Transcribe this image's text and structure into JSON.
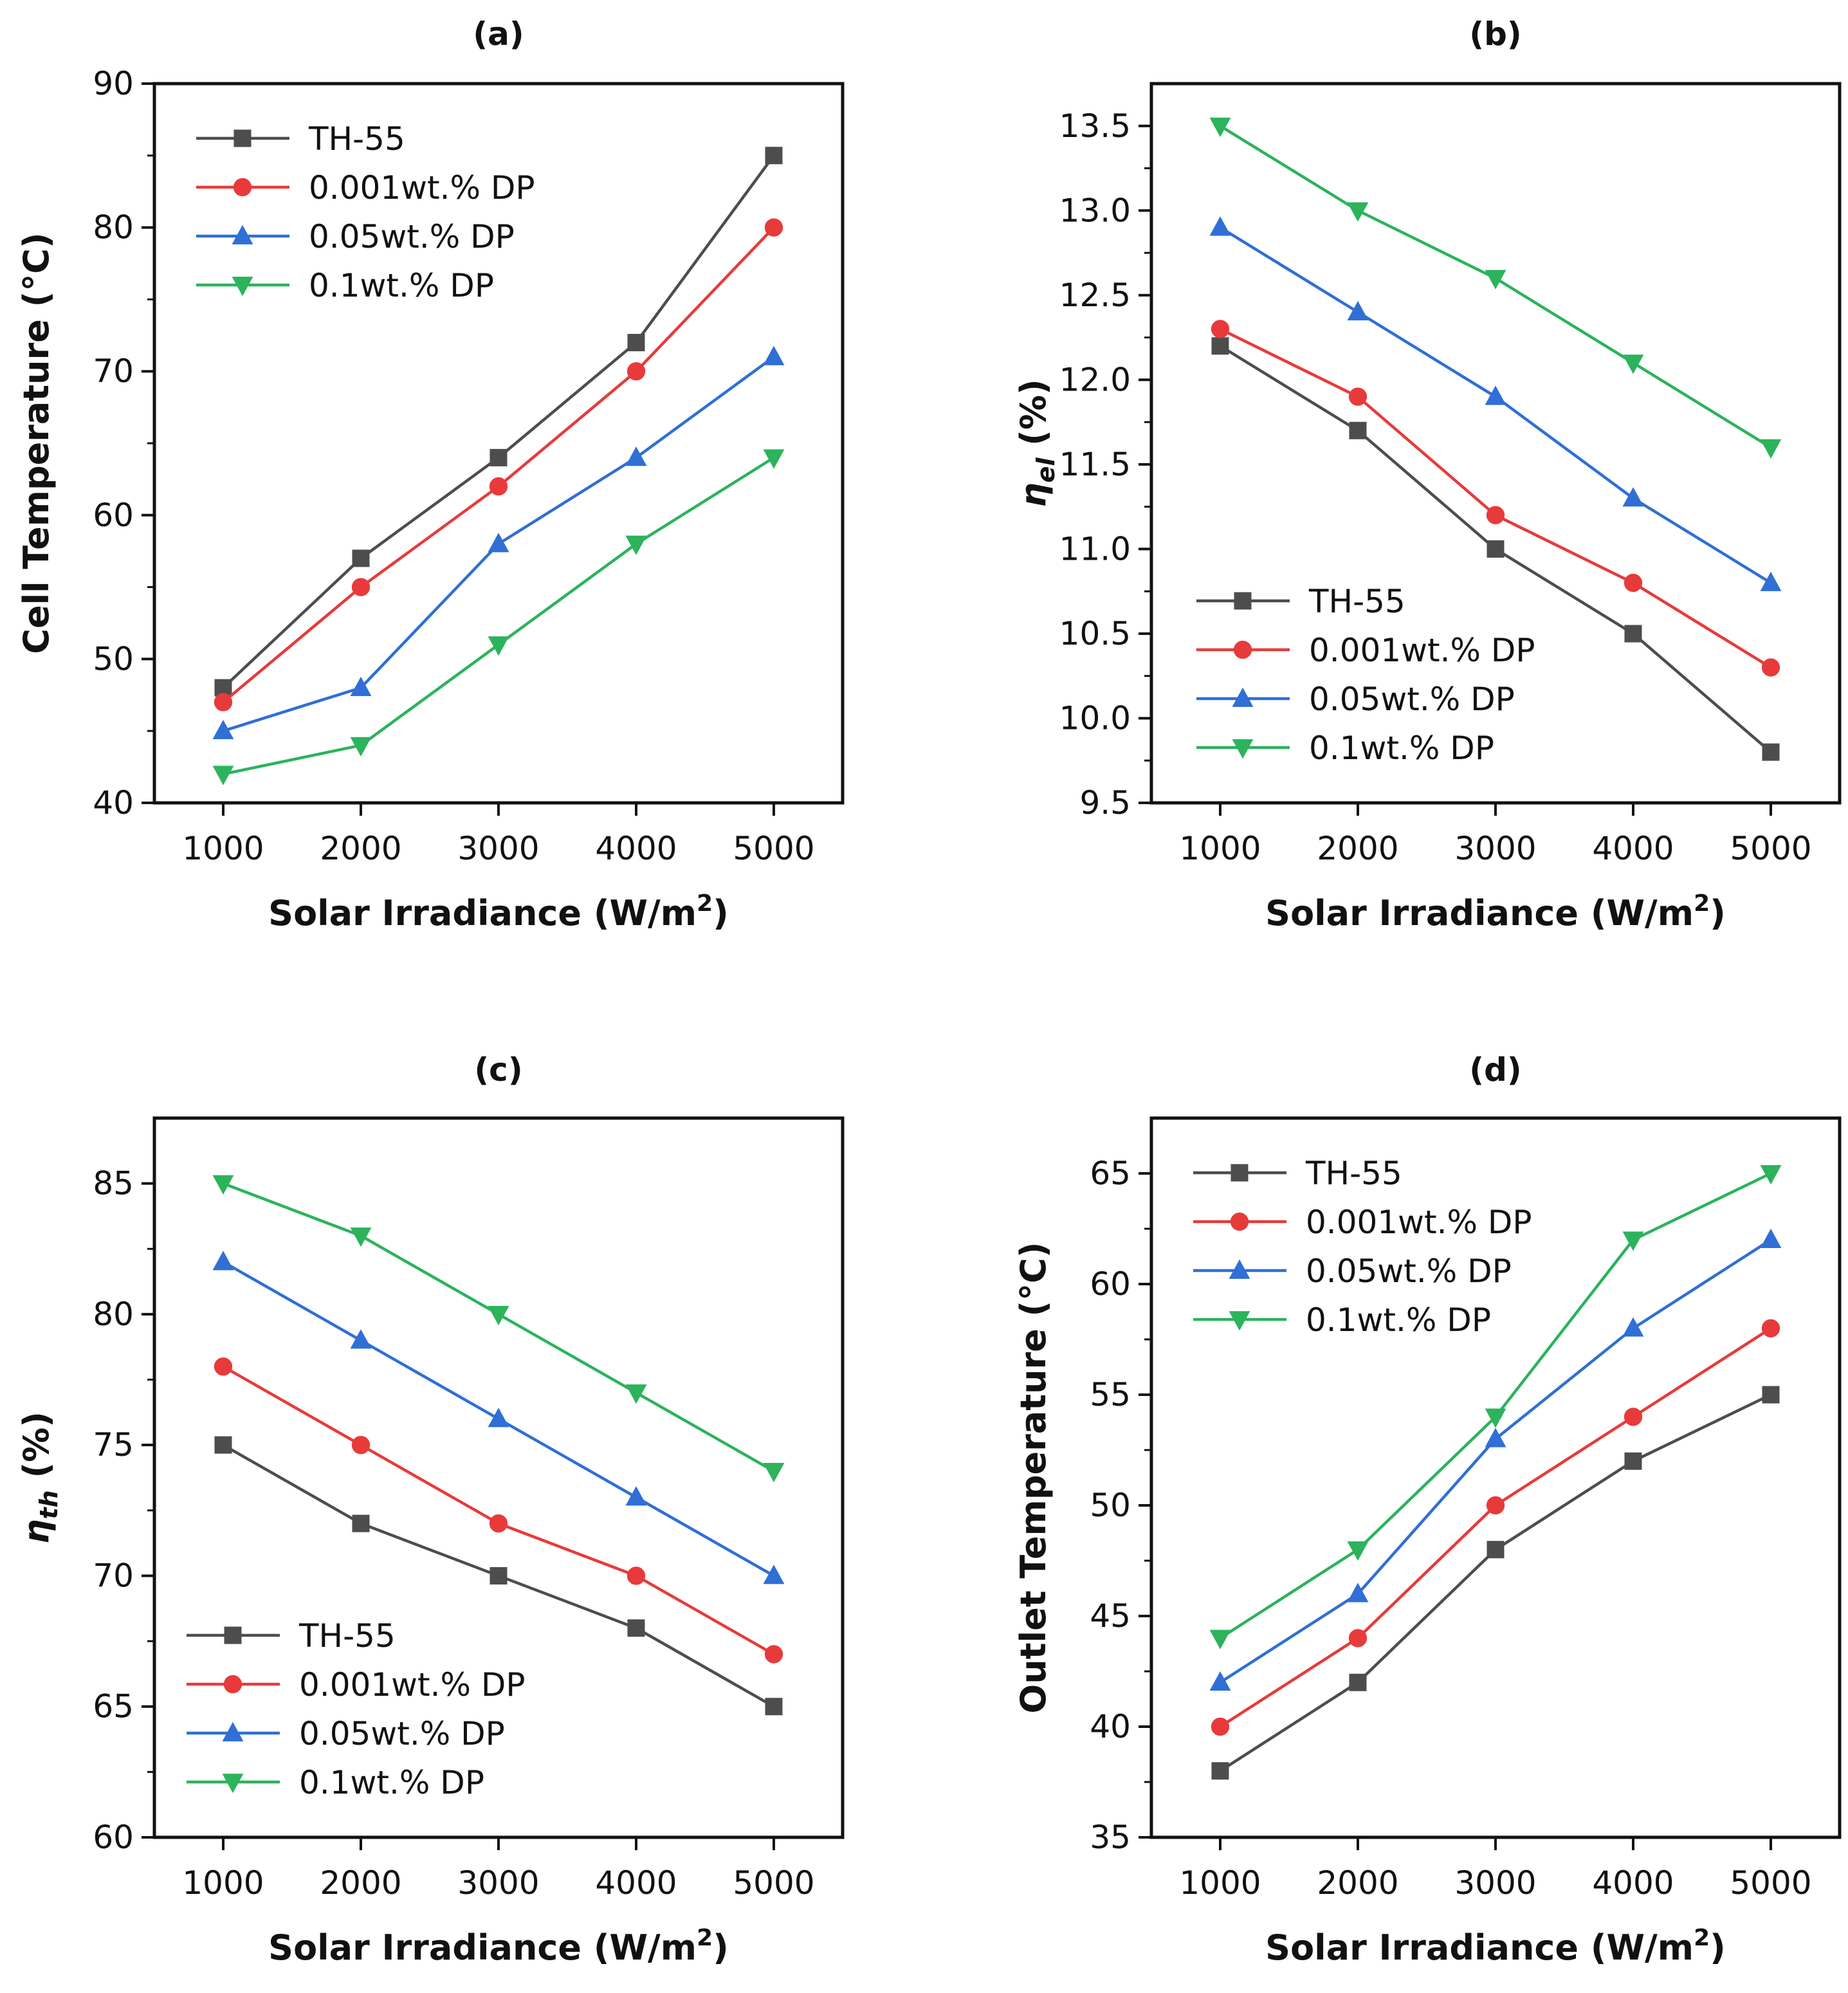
{
  "colors": {
    "TH-55": "#4d4d4d",
    "0.001wt.% DP": "#e83a3a",
    "0.05wt.% DP": "#2f6fd6",
    "0.1wt.% DP": "#2cb35c"
  },
  "chart_data": [
    {
      "id": "a",
      "type": "line",
      "title": "(a)",
      "xlabel": "Solar Irradiance (W/m²)",
      "ylabel": "Cell Temperature (°C)",
      "x": [
        1000,
        2000,
        3000,
        4000,
        5000
      ],
      "xlim": [
        500,
        5500
      ],
      "ylim": [
        40,
        90
      ],
      "yticks": [
        40,
        50,
        60,
        70,
        80,
        90
      ],
      "ytick_labels": [
        "40",
        "50",
        "60",
        "70",
        "80",
        "90"
      ],
      "legend_position": "top-left",
      "series": [
        {
          "name": "TH-55",
          "marker": "square",
          "values": [
            48,
            57,
            64,
            72,
            85
          ]
        },
        {
          "name": "0.001wt.% DP",
          "marker": "circle",
          "values": [
            47,
            55,
            62,
            70,
            80
          ]
        },
        {
          "name": "0.05wt.% DP",
          "marker": "triangle-up",
          "values": [
            45,
            48,
            58,
            64,
            71
          ]
        },
        {
          "name": "0.1wt.% DP",
          "marker": "triangle-down",
          "values": [
            42,
            44,
            51,
            58,
            64
          ]
        }
      ]
    },
    {
      "id": "b",
      "type": "line",
      "title": "(b)",
      "xlabel": "Solar Irradiance (W/m²)",
      "ylabel_symbol": "η",
      "ylabel_sub": "el",
      "ylabel_unit": "(%)",
      "x": [
        1000,
        2000,
        3000,
        4000,
        5000
      ],
      "xlim": [
        500,
        5500
      ],
      "ylim": [
        9.5,
        13.75
      ],
      "yticks": [
        9.5,
        10.0,
        10.5,
        11.0,
        11.5,
        12.0,
        12.5,
        13.0,
        13.5
      ],
      "ytick_labels": [
        "9.5",
        "10.0",
        "10.5",
        "11.0",
        "11.5",
        "12.0",
        "12.5",
        "13.0",
        "13.5"
      ],
      "legend_position": "bottom-left",
      "series": [
        {
          "name": "TH-55",
          "marker": "square",
          "values": [
            12.2,
            11.7,
            11.0,
            10.5,
            9.8
          ]
        },
        {
          "name": "0.001wt.% DP",
          "marker": "circle",
          "values": [
            12.3,
            11.9,
            11.2,
            10.8,
            10.3
          ]
        },
        {
          "name": "0.05wt.% DP",
          "marker": "triangle-up",
          "values": [
            12.9,
            12.4,
            11.9,
            11.3,
            10.8
          ]
        },
        {
          "name": "0.1wt.% DP",
          "marker": "triangle-down",
          "values": [
            13.5,
            13.0,
            12.6,
            12.1,
            11.6
          ]
        }
      ]
    },
    {
      "id": "c",
      "type": "line",
      "title": "(c)",
      "xlabel": "Solar Irradiance (W/m²)",
      "ylabel_symbol": "η",
      "ylabel_sub": "th",
      "ylabel_unit": "(%)",
      "x": [
        1000,
        2000,
        3000,
        4000,
        5000
      ],
      "xlim": [
        500,
        5500
      ],
      "ylim": [
        60,
        87.5
      ],
      "yticks": [
        60,
        65,
        70,
        75,
        80,
        85
      ],
      "ytick_labels": [
        "60",
        "65",
        "70",
        "75",
        "80",
        "85"
      ],
      "legend_position": "bottom-left",
      "series": [
        {
          "name": "TH-55",
          "marker": "square",
          "values": [
            75,
            72,
            70,
            68,
            65
          ]
        },
        {
          "name": "0.001wt.% DP",
          "marker": "circle",
          "values": [
            78,
            75,
            72,
            70,
            67
          ]
        },
        {
          "name": "0.05wt.% DP",
          "marker": "triangle-up",
          "values": [
            82,
            79,
            76,
            73,
            70
          ]
        },
        {
          "name": "0.1wt.% DP",
          "marker": "triangle-down",
          "values": [
            85,
            83,
            80,
            77,
            74
          ]
        }
      ]
    },
    {
      "id": "d",
      "type": "line",
      "title": "(d)",
      "xlabel": "Solar Irradiance (W/m²)",
      "ylabel": "Outlet Temperature (°C)",
      "x": [
        1000,
        2000,
        3000,
        4000,
        5000
      ],
      "xlim": [
        500,
        5500
      ],
      "ylim": [
        35,
        67.5
      ],
      "yticks": [
        35,
        40,
        45,
        50,
        55,
        60,
        65
      ],
      "ytick_labels": [
        "35",
        "40",
        "45",
        "50",
        "55",
        "60",
        "65"
      ],
      "legend_position": "top-left",
      "series": [
        {
          "name": "TH-55",
          "marker": "square",
          "values": [
            38,
            42,
            48,
            52,
            55
          ]
        },
        {
          "name": "0.001wt.% DP",
          "marker": "circle",
          "values": [
            40,
            44,
            50,
            54,
            58
          ]
        },
        {
          "name": "0.05wt.% DP",
          "marker": "triangle-up",
          "values": [
            42,
            46,
            53,
            58,
            62
          ]
        },
        {
          "name": "0.1wt.% DP",
          "marker": "triangle-down",
          "values": [
            44,
            48,
            54,
            62,
            65
          ]
        }
      ]
    }
  ]
}
